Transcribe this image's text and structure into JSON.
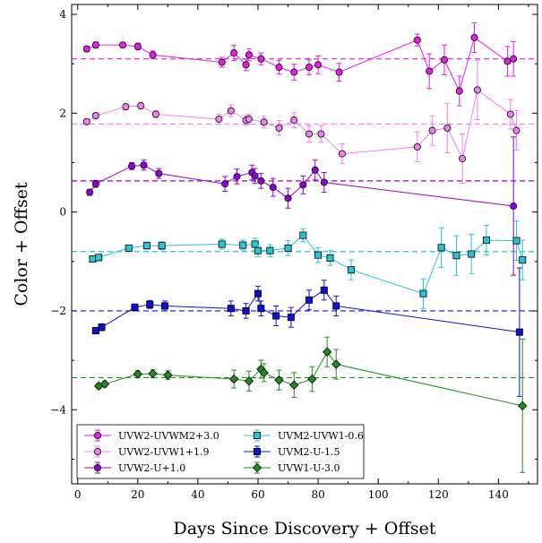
{
  "chart_data": {
    "type": "scatter",
    "xlabel": "Days Since Discovery + Offset",
    "ylabel": "Color + Offset",
    "xlim": [
      -2,
      153
    ],
    "ylim": [
      -5.5,
      4.2
    ],
    "xticks": [
      0,
      20,
      40,
      60,
      80,
      100,
      120,
      140
    ],
    "yticks": [
      -4,
      -2,
      0,
      2,
      4
    ],
    "grid": false,
    "legend_position": "bottom-left",
    "series": [
      {
        "name": "UVW2-UVWM2+3.0",
        "color": "#e61ee6",
        "marker": "circle",
        "baseline": 3.1,
        "x": [
          3,
          6,
          15,
          20,
          25,
          48,
          52,
          56,
          57,
          61,
          67,
          72,
          77,
          80,
          87,
          113,
          117,
          122,
          127,
          132,
          143,
          145
        ],
        "y": [
          3.3,
          3.38,
          3.38,
          3.35,
          3.18,
          3.03,
          3.22,
          2.98,
          3.18,
          3.1,
          2.93,
          2.83,
          2.93,
          2.98,
          2.83,
          3.48,
          2.85,
          3.08,
          2.45,
          3.53,
          3.05,
          3.1
        ],
        "err": [
          0.05,
          0.06,
          0.05,
          0.07,
          0.08,
          0.1,
          0.15,
          0.12,
          0.12,
          0.12,
          0.14,
          0.16,
          0.15,
          0.18,
          0.18,
          0.12,
          0.35,
          0.3,
          0.3,
          0.3,
          0.3,
          0.35
        ]
      },
      {
        "name": "UVW2-UVW1+1.9",
        "color": "#ee82ee",
        "marker": "circle",
        "baseline": 1.78,
        "x": [
          3,
          6,
          16,
          21,
          26,
          47,
          51,
          56,
          57,
          62,
          67,
          72,
          77,
          81,
          88,
          113,
          118,
          123,
          128,
          133,
          144,
          146
        ],
        "y": [
          1.83,
          1.95,
          2.13,
          2.15,
          1.98,
          1.88,
          2.05,
          1.86,
          1.88,
          1.82,
          1.7,
          1.86,
          1.58,
          1.58,
          1.18,
          1.32,
          1.65,
          1.7,
          1.08,
          2.47,
          1.98,
          1.65
        ],
        "err": [
          0.05,
          0.06,
          0.06,
          0.07,
          0.07,
          0.1,
          0.12,
          0.1,
          0.1,
          0.12,
          0.15,
          0.15,
          0.17,
          0.17,
          0.2,
          0.3,
          0.3,
          0.5,
          0.5,
          0.6,
          0.3,
          0.4
        ]
      },
      {
        "name": "UVW2-U+1.0",
        "color": "#9400d3",
        "marker": "circle",
        "baseline": 0.63,
        "x": [
          4,
          6,
          18,
          22,
          27,
          49,
          53,
          58,
          59,
          61,
          65,
          70,
          75,
          79,
          82,
          145
        ],
        "y": [
          0.4,
          0.57,
          0.93,
          0.95,
          0.78,
          0.57,
          0.72,
          0.8,
          0.73,
          0.63,
          0.5,
          0.28,
          0.55,
          0.85,
          0.6,
          0.12
        ],
        "err": [
          0.06,
          0.07,
          0.07,
          0.1,
          0.1,
          0.15,
          0.15,
          0.15,
          0.15,
          0.15,
          0.18,
          0.2,
          0.18,
          0.2,
          0.2,
          1.4
        ]
      },
      {
        "name": "UVM2-UVW1-0.6",
        "color": "#29c3d4",
        "marker": "square",
        "baseline": -0.8,
        "x": [
          5,
          7,
          17,
          23,
          28,
          48,
          55,
          59,
          60,
          64,
          70,
          75,
          80,
          84,
          91,
          115,
          121,
          126,
          131,
          136,
          146,
          148
        ],
        "y": [
          -0.95,
          -0.92,
          -0.73,
          -0.68,
          -0.68,
          -0.65,
          -0.67,
          -0.65,
          -0.78,
          -0.78,
          -0.73,
          -0.47,
          -0.87,
          -0.93,
          -1.17,
          -1.65,
          -0.72,
          -0.88,
          -0.85,
          -0.57,
          -0.58,
          -0.97
        ],
        "err": [
          0.05,
          0.06,
          0.06,
          0.07,
          0.08,
          0.1,
          0.1,
          0.12,
          0.12,
          0.12,
          0.15,
          0.13,
          0.15,
          0.15,
          0.2,
          0.3,
          0.4,
          0.4,
          0.4,
          0.3,
          0.4,
          0.4
        ]
      },
      {
        "name": "UVM2-U-1.5",
        "color": "#1010d0",
        "marker": "square",
        "baseline": -2.0,
        "x": [
          6,
          8,
          19,
          24,
          29,
          51,
          56,
          60,
          61,
          66,
          71,
          77,
          82,
          86,
          147
        ],
        "y": [
          -2.4,
          -2.33,
          -1.93,
          -1.87,
          -1.9,
          -1.95,
          -2.0,
          -1.65,
          -1.95,
          -2.1,
          -2.13,
          -1.78,
          -1.58,
          -1.9,
          -2.43
        ],
        "err": [
          0.06,
          0.07,
          0.07,
          0.08,
          0.1,
          0.15,
          0.15,
          0.15,
          0.15,
          0.2,
          0.2,
          0.2,
          0.2,
          0.2,
          1.3
        ]
      },
      {
        "name": "UVW1-U-3.0",
        "color": "#228b22",
        "marker": "diamond",
        "baseline": -3.35,
        "x": [
          7,
          9,
          20,
          25,
          30,
          52,
          57,
          61,
          62,
          67,
          72,
          78,
          83,
          86,
          148
        ],
        "y": [
          -3.52,
          -3.48,
          -3.28,
          -3.27,
          -3.3,
          -3.38,
          -3.42,
          -3.18,
          -3.25,
          -3.4,
          -3.5,
          -3.38,
          -2.83,
          -3.08,
          -3.92
        ],
        "err": [
          0.05,
          0.06,
          0.07,
          0.08,
          0.09,
          0.18,
          0.2,
          0.18,
          0.18,
          0.2,
          0.25,
          0.25,
          0.3,
          0.3,
          1.35
        ]
      }
    ]
  }
}
